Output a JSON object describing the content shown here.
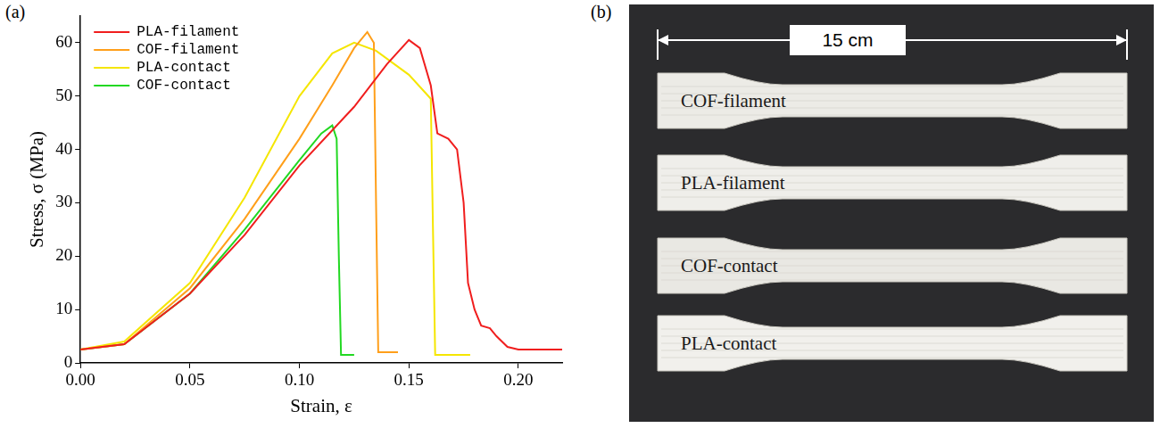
{
  "chart_data": {
    "type": "line",
    "label": "(a)",
    "x_label": "Strain, ε",
    "y_label": "Stress, σ (MPa)",
    "xlim": [
      0,
      0.22
    ],
    "ylim": [
      0,
      65
    ],
    "xticks": [
      {
        "value": 0,
        "label": "0.00"
      },
      {
        "value": 0.05,
        "label": "0.05"
      },
      {
        "value": 0.1,
        "label": "0.10"
      },
      {
        "value": 0.15,
        "label": "0.15"
      },
      {
        "value": 0.2,
        "label": "0.20"
      }
    ],
    "yticks": [
      0,
      10,
      20,
      30,
      40,
      50,
      60
    ],
    "grid": false,
    "legend": "upper left",
    "series": [
      {
        "name": "PLA-filament",
        "color": "#f01e1e",
        "x": [
          0,
          0.01,
          0.02,
          0.05,
          0.075,
          0.1,
          0.125,
          0.14,
          0.15,
          0.155,
          0.16,
          0.163,
          0.168,
          0.172,
          0.175,
          0.177,
          0.18,
          0.183,
          0.187,
          0.19,
          0.195,
          0.2,
          0.22
        ],
        "values": [
          2.5,
          3,
          3.5,
          13,
          24,
          37,
          48,
          56,
          60.5,
          59,
          52,
          43,
          42,
          40,
          30,
          15,
          10,
          7,
          6.5,
          5,
          3,
          2.5,
          2.5
        ]
      },
      {
        "name": "COF-filament",
        "color": "#ff9f1a",
        "x": [
          0,
          0.02,
          0.05,
          0.075,
          0.1,
          0.115,
          0.125,
          0.131,
          0.134,
          0.135,
          0.136,
          0.145
        ],
        "values": [
          2.5,
          3.5,
          14,
          27,
          42,
          52,
          59,
          62,
          60,
          30,
          2,
          2
        ]
      },
      {
        "name": "PLA-contact",
        "color": "#f5e600",
        "x": [
          0,
          0.02,
          0.05,
          0.075,
          0.1,
          0.115,
          0.125,
          0.135,
          0.15,
          0.16,
          0.161,
          0.162,
          0.178
        ],
        "values": [
          2.5,
          4,
          15,
          31,
          50,
          58,
          60,
          58.5,
          54,
          49.5,
          25,
          1.5,
          1.5
        ]
      },
      {
        "name": "COF-contact",
        "color": "#22d822",
        "x": [
          0,
          0.02,
          0.05,
          0.075,
          0.1,
          0.11,
          0.115,
          0.117,
          0.118,
          0.119,
          0.125
        ],
        "values": [
          2.5,
          3.5,
          13,
          25,
          38,
          43,
          44.5,
          42,
          20,
          1.5,
          1.5
        ]
      }
    ]
  },
  "photo": {
    "label": "(b)",
    "scale_bar": "15 cm",
    "specimens": [
      "COF-filament",
      "PLA-filament",
      "COF-contact",
      "PLA-contact"
    ]
  }
}
